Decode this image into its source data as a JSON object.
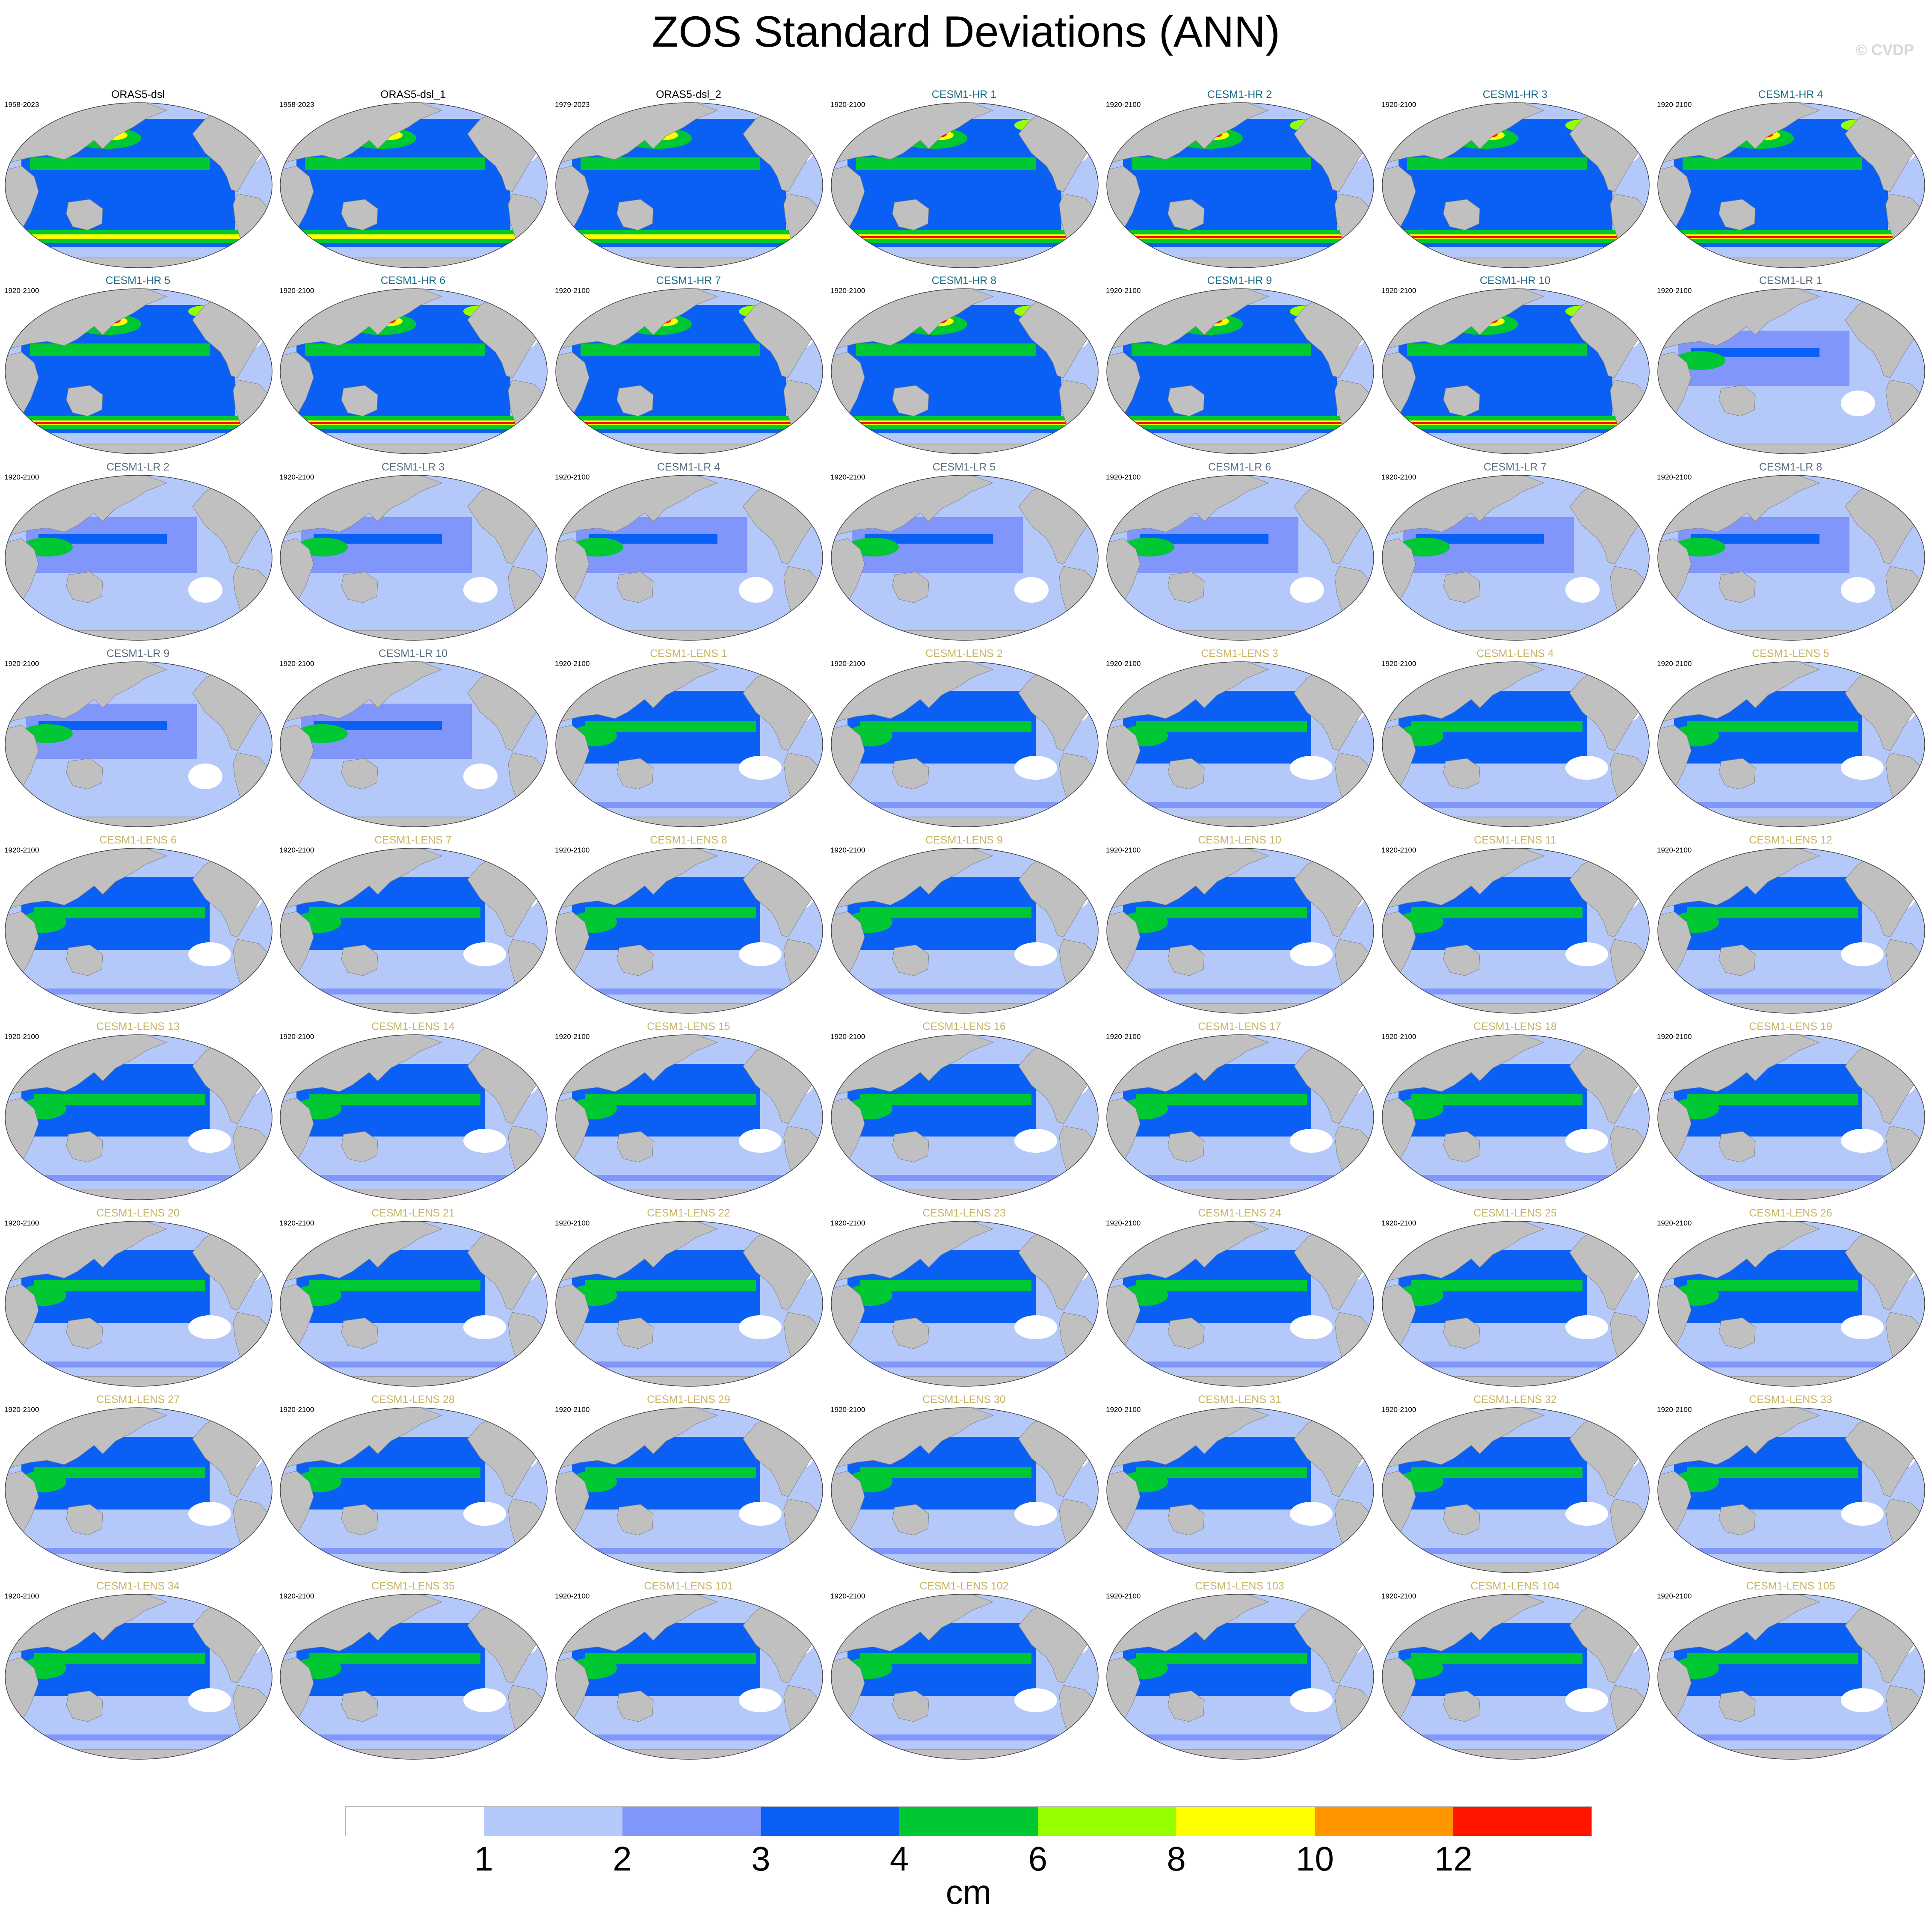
{
  "title": "ZOS Standard Deviations (ANN)",
  "copyright": "© CVDP",
  "colors": {
    "land": "#c0c0c0",
    "obs_title": "#000000",
    "hr_title": "#1a6e8a",
    "lr_title": "#5a6e82",
    "lens_title": "#c8b464"
  },
  "panels": [
    {
      "title": "ORAS5-dsl",
      "years": "1958-2023",
      "group": "obs"
    },
    {
      "title": "ORAS5-dsl_1",
      "years": "1958-2023",
      "group": "obs"
    },
    {
      "title": "ORAS5-dsl_2",
      "years": "1979-2023",
      "group": "obs"
    },
    {
      "title": "CESM1-HR 1",
      "years": "1920-2100",
      "group": "hr"
    },
    {
      "title": "CESM1-HR 2",
      "years": "1920-2100",
      "group": "hr"
    },
    {
      "title": "CESM1-HR 3",
      "years": "1920-2100",
      "group": "hr"
    },
    {
      "title": "CESM1-HR 4",
      "years": "1920-2100",
      "group": "hr"
    },
    {
      "title": "CESM1-HR 5",
      "years": "1920-2100",
      "group": "hr"
    },
    {
      "title": "CESM1-HR 6",
      "years": "1920-2100",
      "group": "hr"
    },
    {
      "title": "CESM1-HR 7",
      "years": "1920-2100",
      "group": "hr"
    },
    {
      "title": "CESM1-HR 8",
      "years": "1920-2100",
      "group": "hr"
    },
    {
      "title": "CESM1-HR 9",
      "years": "1920-2100",
      "group": "hr"
    },
    {
      "title": "CESM1-HR 10",
      "years": "1920-2100",
      "group": "hr"
    },
    {
      "title": "CESM1-LR 1",
      "years": "1920-2100",
      "group": "lr"
    },
    {
      "title": "CESM1-LR 2",
      "years": "1920-2100",
      "group": "lr"
    },
    {
      "title": "CESM1-LR 3",
      "years": "1920-2100",
      "group": "lr"
    },
    {
      "title": "CESM1-LR 4",
      "years": "1920-2100",
      "group": "lr"
    },
    {
      "title": "CESM1-LR 5",
      "years": "1920-2100",
      "group": "lr"
    },
    {
      "title": "CESM1-LR 6",
      "years": "1920-2100",
      "group": "lr"
    },
    {
      "title": "CESM1-LR 7",
      "years": "1920-2100",
      "group": "lr"
    },
    {
      "title": "CESM1-LR 8",
      "years": "1920-2100",
      "group": "lr"
    },
    {
      "title": "CESM1-LR 9",
      "years": "1920-2100",
      "group": "lr"
    },
    {
      "title": "CESM1-LR 10",
      "years": "1920-2100",
      "group": "lr"
    },
    {
      "title": "CESM1-LENS 1",
      "years": "1920-2100",
      "group": "lens"
    },
    {
      "title": "CESM1-LENS 2",
      "years": "1920-2100",
      "group": "lens"
    },
    {
      "title": "CESM1-LENS 3",
      "years": "1920-2100",
      "group": "lens"
    },
    {
      "title": "CESM1-LENS 4",
      "years": "1920-2100",
      "group": "lens"
    },
    {
      "title": "CESM1-LENS 5",
      "years": "1920-2100",
      "group": "lens"
    },
    {
      "title": "CESM1-LENS 6",
      "years": "1920-2100",
      "group": "lens"
    },
    {
      "title": "CESM1-LENS 7",
      "years": "1920-2100",
      "group": "lens"
    },
    {
      "title": "CESM1-LENS 8",
      "years": "1920-2100",
      "group": "lens"
    },
    {
      "title": "CESM1-LENS 9",
      "years": "1920-2100",
      "group": "lens"
    },
    {
      "title": "CESM1-LENS 10",
      "years": "1920-2100",
      "group": "lens"
    },
    {
      "title": "CESM1-LENS 11",
      "years": "1920-2100",
      "group": "lens"
    },
    {
      "title": "CESM1-LENS 12",
      "years": "1920-2100",
      "group": "lens"
    },
    {
      "title": "CESM1-LENS 13",
      "years": "1920-2100",
      "group": "lens"
    },
    {
      "title": "CESM1-LENS 14",
      "years": "1920-2100",
      "group": "lens"
    },
    {
      "title": "CESM1-LENS 15",
      "years": "1920-2100",
      "group": "lens"
    },
    {
      "title": "CESM1-LENS 16",
      "years": "1920-2100",
      "group": "lens"
    },
    {
      "title": "CESM1-LENS 17",
      "years": "1920-2100",
      "group": "lens"
    },
    {
      "title": "CESM1-LENS 18",
      "years": "1920-2100",
      "group": "lens"
    },
    {
      "title": "CESM1-LENS 19",
      "years": "1920-2100",
      "group": "lens"
    },
    {
      "title": "CESM1-LENS 20",
      "years": "1920-2100",
      "group": "lens"
    },
    {
      "title": "CESM1-LENS 21",
      "years": "1920-2100",
      "group": "lens"
    },
    {
      "title": "CESM1-LENS 22",
      "years": "1920-2100",
      "group": "lens"
    },
    {
      "title": "CESM1-LENS 23",
      "years": "1920-2100",
      "group": "lens"
    },
    {
      "title": "CESM1-LENS 24",
      "years": "1920-2100",
      "group": "lens"
    },
    {
      "title": "CESM1-LENS 25",
      "years": "1920-2100",
      "group": "lens"
    },
    {
      "title": "CESM1-LENS 26",
      "years": "1920-2100",
      "group": "lens"
    },
    {
      "title": "CESM1-LENS 27",
      "years": "1920-2100",
      "group": "lens"
    },
    {
      "title": "CESM1-LENS 28",
      "years": "1920-2100",
      "group": "lens"
    },
    {
      "title": "CESM1-LENS 29",
      "years": "1920-2100",
      "group": "lens"
    },
    {
      "title": "CESM1-LENS 30",
      "years": "1920-2100",
      "group": "lens"
    },
    {
      "title": "CESM1-LENS 31",
      "years": "1920-2100",
      "group": "lens"
    },
    {
      "title": "CESM1-LENS 32",
      "years": "1920-2100",
      "group": "lens"
    },
    {
      "title": "CESM1-LENS 33",
      "years": "1920-2100",
      "group": "lens"
    },
    {
      "title": "CESM1-LENS 34",
      "years": "1920-2100",
      "group": "lens"
    },
    {
      "title": "CESM1-LENS 35",
      "years": "1920-2100",
      "group": "lens"
    },
    {
      "title": "CESM1-LENS 101",
      "years": "1920-2100",
      "group": "lens"
    },
    {
      "title": "CESM1-LENS 102",
      "years": "1920-2100",
      "group": "lens"
    },
    {
      "title": "CESM1-LENS 103",
      "years": "1920-2100",
      "group": "lens"
    },
    {
      "title": "CESM1-LENS 104",
      "years": "1920-2100",
      "group": "lens"
    },
    {
      "title": "CESM1-LENS 105",
      "years": "1920-2100",
      "group": "lens"
    }
  ],
  "chart_data": {
    "type": "heatmap",
    "title": "ZOS Standard Deviations (ANN)",
    "grid": "small multiples, 9 rows x 7 columns of global maps",
    "colorbar": {
      "unit": "cm",
      "levels": [
        1,
        2,
        3,
        4,
        6,
        8,
        10,
        12
      ],
      "colors": [
        "#ffffff",
        "#b4c8fa",
        "#8096fa",
        "#0a5ff5",
        "#00c832",
        "#96ff00",
        "#ffff00",
        "#ff9600",
        "#ff1400"
      ]
    }
  }
}
